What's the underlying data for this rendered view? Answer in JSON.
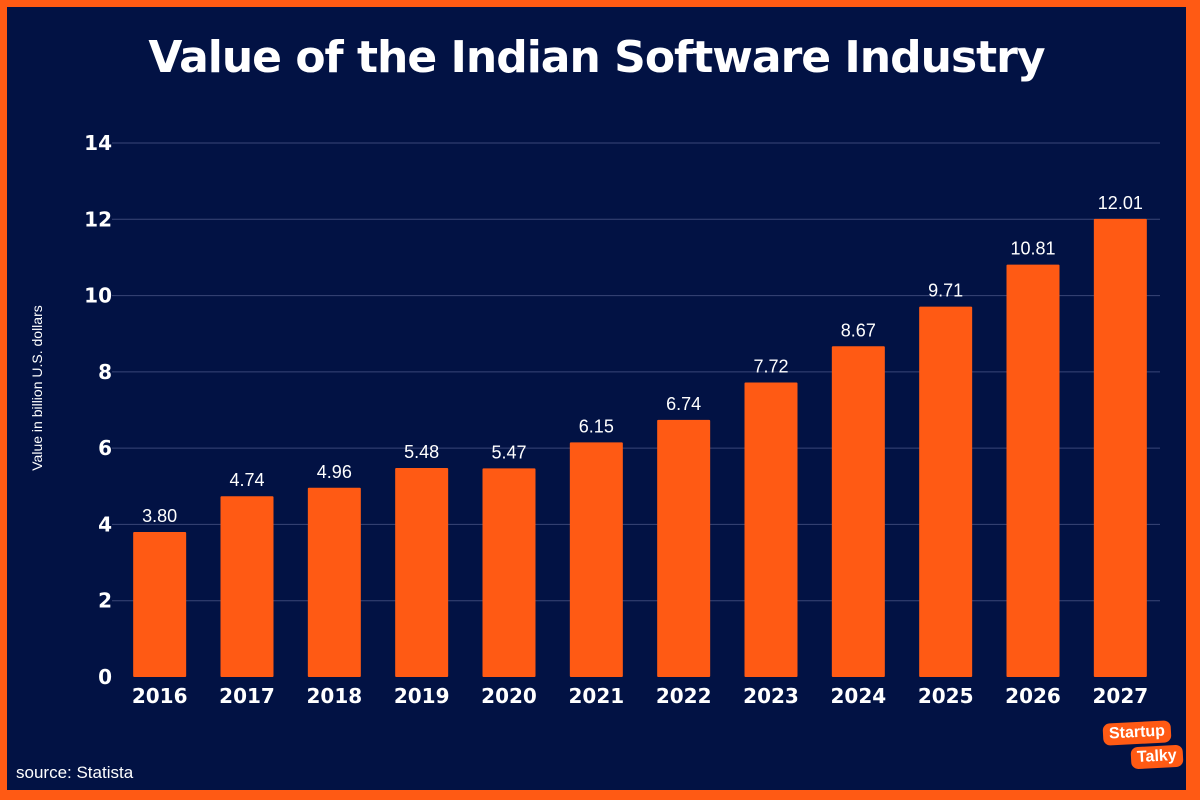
{
  "colors": {
    "background": "#021244",
    "border": "#ff5a14",
    "bar": "#ff5a14",
    "text": "#ffffff",
    "grid": "#3a4677"
  },
  "source": "source: Statista",
  "logo": {
    "line1": "Startup",
    "line2": "Talky"
  },
  "chart_data": {
    "type": "bar",
    "title": "Value of the Indian Software Industry",
    "xlabel": "",
    "ylabel": "Value in billion U.S. dollars",
    "categories": [
      "2016",
      "2017",
      "2018",
      "2019",
      "2020",
      "2021",
      "2022",
      "2023",
      "2024",
      "2025",
      "2026",
      "2027"
    ],
    "values": [
      3.8,
      4.74,
      4.96,
      5.48,
      5.47,
      6.15,
      6.74,
      7.72,
      8.67,
      9.71,
      10.81,
      12.01
    ],
    "value_labels": [
      "3.80",
      "4.74",
      "4.96",
      "5.48",
      "5.47",
      "6.15",
      "6.74",
      "7.72",
      "8.67",
      "9.71",
      "10.81",
      "12.01"
    ],
    "ylim": [
      0,
      14
    ],
    "yticks": [
      0,
      2,
      4,
      6,
      8,
      10,
      12,
      14
    ],
    "grid": true,
    "legend": "none"
  }
}
